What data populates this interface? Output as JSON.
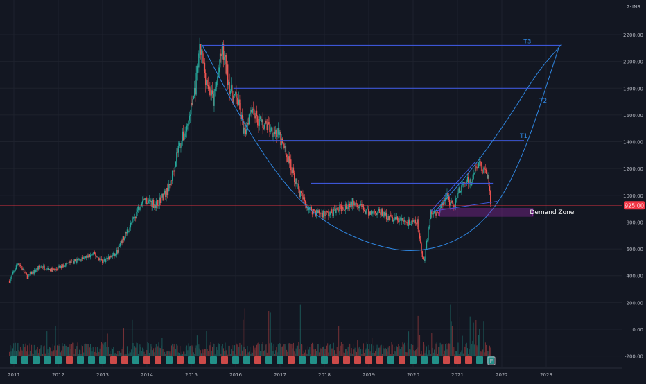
{
  "header": {
    "currency": "INR"
  },
  "price_axis": {
    "labels": [
      "2200.00",
      "2000.00",
      "1800.00",
      "1600.00",
      "1400.00",
      "1200.00",
      "1000.00",
      "800.00",
      "600.00",
      "400.00",
      "200.00",
      "0.00",
      "-200.00"
    ]
  },
  "time_axis": {
    "labels": [
      "2011",
      "2012",
      "2013",
      "2014",
      "2015",
      "2016",
      "2017",
      "2018",
      "2019",
      "2020",
      "2021",
      "2022",
      "2023"
    ]
  },
  "current_price": {
    "label": "925.00",
    "color": "#f23645"
  },
  "colors": {
    "up": "#26a69a",
    "down": "#ef5350",
    "trendline": "#3c56d6",
    "curve": "#2f86e0",
    "zone": "#9c27b0",
    "background": "#131722",
    "axis_text": "#b2b5be"
  },
  "annotations": {
    "t1": "T1",
    "t2": "T2",
    "t3": "T3",
    "demand_zone": "Demand Zone",
    "events_marker": "E"
  },
  "chart_data": {
    "type": "candlestick",
    "ylim": [
      -250,
      2290
    ],
    "xlim": [
      2010.9,
      2023.3
    ],
    "anchors": [
      [
        2010.9,
        360
      ],
      [
        2011.1,
        500
      ],
      [
        2011.3,
        390
      ],
      [
        2011.6,
        470
      ],
      [
        2011.9,
        440
      ],
      [
        2012.2,
        490
      ],
      [
        2012.5,
        520
      ],
      [
        2012.8,
        560
      ],
      [
        2013.0,
        510
      ],
      [
        2013.3,
        560
      ],
      [
        2013.5,
        700
      ],
      [
        2013.7,
        820
      ],
      [
        2013.9,
        980
      ],
      [
        2014.2,
        930
      ],
      [
        2014.5,
        1050
      ],
      [
        2014.7,
        1350
      ],
      [
        2014.9,
        1500
      ],
      [
        2015.1,
        1820
      ],
      [
        2015.2,
        2090
      ],
      [
        2015.35,
        1850
      ],
      [
        2015.5,
        1700
      ],
      [
        2015.7,
        2090
      ],
      [
        2015.9,
        1760
      ],
      [
        2016.05,
        1700
      ],
      [
        2016.2,
        1450
      ],
      [
        2016.35,
        1680
      ],
      [
        2016.5,
        1560
      ],
      [
        2016.7,
        1520
      ],
      [
        2016.95,
        1460
      ],
      [
        2017.2,
        1260
      ],
      [
        2017.45,
        1010
      ],
      [
        2017.65,
        900
      ],
      [
        2017.85,
        870
      ],
      [
        2018.1,
        860
      ],
      [
        2018.4,
        910
      ],
      [
        2018.7,
        960
      ],
      [
        2018.95,
        870
      ],
      [
        2019.2,
        880
      ],
      [
        2019.5,
        830
      ],
      [
        2019.75,
        810
      ],
      [
        2019.95,
        790
      ],
      [
        2020.1,
        800
      ],
      [
        2020.2,
        560
      ],
      [
        2020.25,
        520
      ],
      [
        2020.4,
        860
      ],
      [
        2020.6,
        890
      ],
      [
        2020.75,
        1010
      ],
      [
        2020.9,
        900
      ],
      [
        2021.1,
        1090
      ],
      [
        2021.3,
        1110
      ],
      [
        2021.45,
        1250
      ],
      [
        2021.55,
        1210
      ],
      [
        2021.7,
        1110
      ],
      [
        2021.75,
        925
      ]
    ],
    "volume": {
      "baseline": -200
    },
    "trendlines": [
      {
        "name": "T3",
        "x1": 2015.25,
        "y1": 2120,
        "x2": 2023.35,
        "y2": 2120
      },
      {
        "name": "T2",
        "x1": 2015.95,
        "y1": 1800,
        "x2": 2022.9,
        "y2": 1800
      },
      {
        "name": "T1",
        "x1": 2016.5,
        "y1": 1410,
        "x2": 2022.5,
        "y2": 1410
      },
      {
        "x1": 2017.7,
        "y1": 1090,
        "x2": 2021.8,
        "y2": 1090
      },
      {
        "x1": 2020.4,
        "y1": 880,
        "x2": 2021.4,
        "y2": 1250
      },
      {
        "x1": 2020.4,
        "y1": 880,
        "x2": 2021.9,
        "y2": 955
      }
    ],
    "curves": [
      {
        "points": [
          [
            2015.25,
            2120
          ],
          [
            2016.4,
            1400
          ],
          [
            2017.6,
            880
          ],
          [
            2018.9,
            640
          ],
          [
            2020.2,
            560
          ],
          [
            2021.5,
            740
          ],
          [
            2022.4,
            1200
          ],
          [
            2023.3,
            2120
          ]
        ]
      },
      {
        "points": [
          [
            2020.5,
            880
          ],
          [
            2021.4,
            1220
          ],
          [
            2022.2,
            1600
          ],
          [
            2022.8,
            1920
          ],
          [
            2023.35,
            2130
          ]
        ]
      }
    ],
    "demand_zone": {
      "x1": 2020.6,
      "x2": 2022.7,
      "y1": 845,
      "y2": 900
    },
    "current_price": 925
  }
}
